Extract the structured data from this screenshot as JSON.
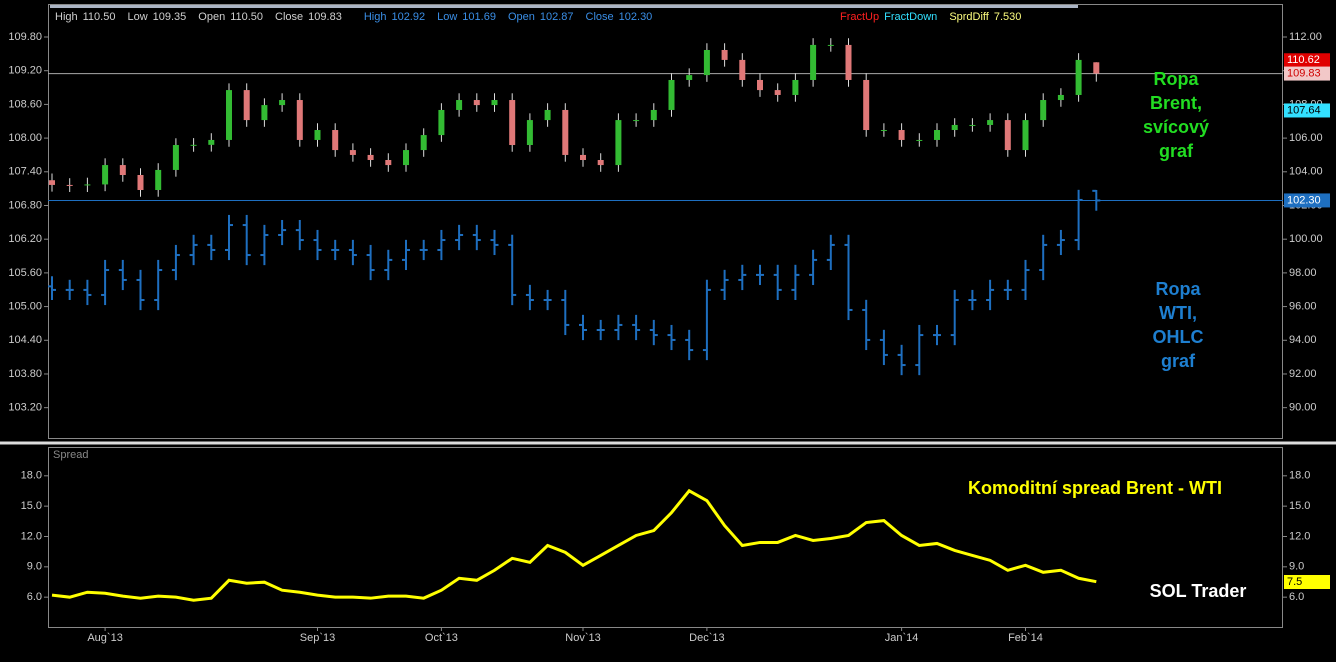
{
  "chart_data": [
    {
      "type": "candlestick",
      "info_bar": [
        {
          "text": "High",
          "color": "#cfcfcf"
        },
        {
          "text": "110.50",
          "color": "#cfcfcf"
        },
        {
          "text": "Low",
          "color": "#cfcfcf"
        },
        {
          "text": "109.35",
          "color": "#cfcfcf"
        },
        {
          "text": "Open",
          "color": "#cfcfcf"
        },
        {
          "text": "110.50",
          "color": "#cfcfcf"
        },
        {
          "text": "Close",
          "color": "#cfcfcf"
        },
        {
          "text": "109.83",
          "color": "#cfcfcf"
        },
        {
          "text": "High",
          "color": "#3a8ee6"
        },
        {
          "text": "102.92",
          "color": "#3a8ee6"
        },
        {
          "text": "Low",
          "color": "#3a8ee6"
        },
        {
          "text": "101.69",
          "color": "#3a8ee6"
        },
        {
          "text": "Open",
          "color": "#3a8ee6"
        },
        {
          "text": "102.87",
          "color": "#3a8ee6"
        },
        {
          "text": "Close",
          "color": "#3a8ee6"
        },
        {
          "text": "102.30",
          "color": "#3a8ee6"
        },
        {
          "text": "FractUp",
          "color": "#ff2020"
        },
        {
          "text": "FractDown",
          "color": "#33e0ff"
        },
        {
          "text": "SprdDiff",
          "color": "#ffff80"
        },
        {
          "text": "7.530",
          "color": "#ffff80"
        }
      ],
      "annotations": [
        {
          "lines": [
            "Ropa",
            "Brent,",
            "svícový",
            "graf"
          ],
          "color": "#22dd22"
        },
        {
          "lines": [
            "Ropa",
            "WTI,",
            "OHLC",
            "graf"
          ],
          "color": "#1e7fd0"
        }
      ],
      "ylim": [
        88.2,
        113.9
      ],
      "yticks": [
        {
          "value": 112,
          "label": "112.00"
        },
        {
          "value": 110,
          "label": "110.00"
        },
        {
          "value": 108,
          "label": "108.00"
        },
        {
          "value": 106,
          "label": "106.00"
        },
        {
          "value": 104,
          "label": "104.00"
        },
        {
          "value": 102,
          "label": "102.00"
        },
        {
          "value": 100,
          "label": "100.00"
        },
        {
          "value": 98,
          "label": "98.00"
        },
        {
          "value": 96,
          "label": "96.00"
        },
        {
          "value": 94,
          "label": "94.00"
        },
        {
          "value": 92,
          "label": "92.00"
        },
        {
          "value": 90,
          "label": "90.00"
        }
      ],
      "y2lim": [
        102.66,
        110.37
      ],
      "y2ticks": [
        {
          "value": 109.8,
          "label": "109.80"
        },
        {
          "value": 109.2,
          "label": "109.20"
        },
        {
          "value": 108.6,
          "label": "108.60"
        },
        {
          "value": 108,
          "label": "108.00"
        },
        {
          "value": 107.4,
          "label": "107.40"
        },
        {
          "value": 106.8,
          "label": "106.80"
        },
        {
          "value": 106.2,
          "label": "106.20"
        },
        {
          "value": 105.6,
          "label": "105.60"
        },
        {
          "value": 105,
          "label": "105.00"
        },
        {
          "value": 104.4,
          "label": "104.40"
        },
        {
          "value": 103.8,
          "label": "103.80"
        },
        {
          "value": 103.2,
          "label": "103.20"
        }
      ],
      "price_labels": [
        {
          "value": 110.62,
          "label": "110.62",
          "bg": "#e00000",
          "fg": "#ffffff"
        },
        {
          "value": 109.83,
          "label": "109.83",
          "bg": "#f2c8c8",
          "fg": "#d00000",
          "line": "#aaaaaa"
        },
        {
          "value": 107.64,
          "label": "107.64",
          "bg": "#33e0ff",
          "fg": "#000000"
        },
        {
          "value": 102.3,
          "label": "102.30",
          "bg": "#1e6fc0",
          "fg": "#ffffff",
          "line": "#1e6fc0"
        }
      ],
      "fractal_up_color": "#ff2020",
      "fractal_down_color": "#33e0ff",
      "series": [
        {
          "style": "candle",
          "up_color": "#33bb33",
          "down_color": "#e07878",
          "wick_color": "#dddddd",
          "fractals": true,
          "open": [
            103.5,
            103.22,
            103.2,
            103.25,
            104.4,
            103.81,
            102.92,
            104.11,
            105.59,
            105.6,
            105.89,
            108.85,
            107.07,
            107.96,
            108.26,
            105.89,
            106.48,
            105.29,
            105.0,
            104.7,
            104.4,
            105.29,
            106.18,
            107.67,
            108.26,
            107.96,
            108.26,
            105.59,
            107.07,
            107.67,
            105.0,
            104.7,
            104.4,
            107.07,
            107.07,
            107.67,
            109.45,
            109.74,
            111.23,
            110.64,
            109.45,
            108.85,
            108.56,
            109.45,
            111.53,
            111.53,
            109.45,
            106.48,
            106.48,
            105.89,
            105.89,
            106.48,
            106.78,
            106.78,
            107.07,
            105.29,
            107.07,
            108.26,
            108.56,
            110.5
          ],
          "high": [
            103.9,
            103.62,
            103.65,
            104.8,
            104.8,
            104.21,
            104.51,
            105.99,
            106.0,
            106.29,
            109.25,
            109.25,
            108.36,
            108.66,
            108.66,
            106.88,
            106.88,
            105.69,
            105.4,
            105.1,
            105.69,
            106.58,
            108.07,
            108.66,
            108.66,
            108.66,
            108.66,
            107.47,
            108.07,
            108.07,
            105.4,
            105.1,
            107.47,
            107.47,
            108.07,
            109.85,
            110.14,
            111.63,
            111.63,
            111.04,
            109.85,
            109.25,
            109.85,
            111.93,
            111.93,
            111.93,
            109.85,
            106.88,
            106.88,
            106.29,
            106.88,
            107.18,
            107.18,
            107.47,
            107.47,
            107.47,
            108.66,
            108.96,
            111.04,
            110.5
          ],
          "low": [
            102.82,
            102.8,
            102.8,
            102.85,
            103.41,
            102.52,
            102.52,
            103.71,
            105.19,
            105.2,
            105.49,
            106.67,
            106.67,
            107.56,
            105.49,
            105.49,
            104.89,
            104.6,
            104.3,
            104.0,
            104.0,
            104.89,
            105.78,
            107.27,
            107.56,
            107.56,
            105.19,
            105.19,
            106.67,
            104.6,
            104.3,
            104.0,
            104.0,
            106.67,
            106.67,
            107.27,
            109.05,
            109.34,
            110.24,
            109.05,
            108.45,
            108.16,
            108.16,
            109.05,
            111.13,
            109.05,
            106.08,
            106.08,
            105.49,
            105.49,
            105.49,
            106.08,
            106.38,
            106.38,
            104.89,
            104.89,
            106.67,
            107.86,
            108.16,
            109.35
          ],
          "close": [
            103.22,
            103.2,
            103.25,
            104.4,
            103.81,
            102.92,
            104.11,
            105.59,
            105.6,
            105.89,
            108.85,
            107.07,
            107.96,
            108.26,
            105.89,
            106.48,
            105.29,
            105.0,
            104.7,
            104.4,
            105.29,
            106.18,
            107.67,
            108.26,
            107.96,
            108.26,
            105.59,
            107.07,
            107.67,
            105.0,
            104.7,
            104.4,
            107.07,
            107.07,
            107.67,
            109.45,
            109.74,
            111.23,
            110.64,
            109.45,
            108.85,
            108.56,
            109.45,
            111.53,
            111.53,
            109.45,
            106.48,
            106.48,
            105.89,
            105.89,
            106.48,
            106.78,
            106.78,
            107.07,
            105.29,
            107.07,
            108.26,
            108.56,
            110.64,
            109.83
          ]
        },
        {
          "style": "ohlc",
          "color": "#1e6fc0",
          "open": [
            97.2,
            96.99,
            96.99,
            96.69,
            98.17,
            97.58,
            96.39,
            98.17,
            99.06,
            99.66,
            99.36,
            100.84,
            99.06,
            100.25,
            100.54,
            99.95,
            99.36,
            99.36,
            99.06,
            98.17,
            98.77,
            99.36,
            99.36,
            99.95,
            100.25,
            99.95,
            99.66,
            96.69,
            96.39,
            96.39,
            94.91,
            94.61,
            94.61,
            94.91,
            94.61,
            94.31,
            94.02,
            93.42,
            96.99,
            97.58,
            97.88,
            97.88,
            96.99,
            97.88,
            98.77,
            99.66,
            95.8,
            94.02,
            93.13,
            92.53,
            94.31,
            94.31,
            96.39,
            96.39,
            96.99,
            96.99,
            98.17,
            99.66,
            99.95,
            102.87
          ],
          "high": [
            97.8,
            97.59,
            97.59,
            98.77,
            98.77,
            98.18,
            98.77,
            99.66,
            100.26,
            100.26,
            101.44,
            101.44,
            100.85,
            101.14,
            101.14,
            100.55,
            99.96,
            99.96,
            99.66,
            99.37,
            99.96,
            99.96,
            100.55,
            100.85,
            100.85,
            100.55,
            100.26,
            97.29,
            96.99,
            96.99,
            95.51,
            95.21,
            95.51,
            95.51,
            95.21,
            94.91,
            94.62,
            97.59,
            98.18,
            98.48,
            98.48,
            98.48,
            98.48,
            99.37,
            100.26,
            100.26,
            96.4,
            94.62,
            93.73,
            94.91,
            94.91,
            96.99,
            96.99,
            97.59,
            97.59,
            98.77,
            100.26,
            100.55,
            102.93,
            102.92
          ],
          "low": [
            96.39,
            96.39,
            96.09,
            96.09,
            96.98,
            95.79,
            95.79,
            97.57,
            98.46,
            98.76,
            98.76,
            98.46,
            98.46,
            99.65,
            99.35,
            98.76,
            98.76,
            98.46,
            97.57,
            97.57,
            98.17,
            98.76,
            98.76,
            99.35,
            99.35,
            99.06,
            96.09,
            95.79,
            95.79,
            94.31,
            94.01,
            94.01,
            94.01,
            94.01,
            93.71,
            93.42,
            92.82,
            92.82,
            96.39,
            96.98,
            97.28,
            96.39,
            96.39,
            97.28,
            98.17,
            95.2,
            93.42,
            92.53,
            91.93,
            91.93,
            93.71,
            93.71,
            95.79,
            95.79,
            96.39,
            96.39,
            97.57,
            99.06,
            99.35,
            101.69
          ],
          "close": [
            96.99,
            96.99,
            96.69,
            98.17,
            97.58,
            96.39,
            98.17,
            99.06,
            99.66,
            99.36,
            100.84,
            99.06,
            100.25,
            100.54,
            99.95,
            99.36,
            99.36,
            99.06,
            98.17,
            98.77,
            99.36,
            99.36,
            99.95,
            100.25,
            99.95,
            99.66,
            96.69,
            96.39,
            96.39,
            94.91,
            94.61,
            94.61,
            94.91,
            94.61,
            94.31,
            94.02,
            93.42,
            96.99,
            97.58,
            97.88,
            97.88,
            96.99,
            97.88,
            98.77,
            99.66,
            95.8,
            94.02,
            93.13,
            92.53,
            94.31,
            94.31,
            96.39,
            96.39,
            96.99,
            96.99,
            98.17,
            99.66,
            99.95,
            102.33,
            102.3
          ]
        }
      ]
    },
    {
      "type": "line",
      "title": "Spread",
      "annotations": [
        {
          "lines": [
            "Komoditní spread Brent - WTI"
          ],
          "color": "#ffff00"
        },
        {
          "lines": [
            "SOL Trader"
          ],
          "color": "#ffffff"
        }
      ],
      "categories": [
        null,
        null,
        null,
        "Aug`13",
        null,
        null,
        null,
        null,
        null,
        null,
        null,
        null,
        null,
        null,
        null,
        "Sep`13",
        null,
        null,
        null,
        null,
        null,
        null,
        "Oct`13",
        null,
        null,
        null,
        null,
        null,
        null,
        null,
        "Nov`13",
        null,
        null,
        null,
        null,
        null,
        null,
        "Dec`13",
        null,
        null,
        null,
        null,
        null,
        null,
        null,
        null,
        null,
        null,
        "Jan`14",
        null,
        null,
        null,
        null,
        null,
        null,
        "Feb`14",
        null,
        null,
        null,
        null
      ],
      "color": "#ffff00",
      "values": [
        6.2,
        6.0,
        6.49,
        6.39,
        6.1,
        5.9,
        6.1,
        6.0,
        5.7,
        5.9,
        7.67,
        7.38,
        7.48,
        6.69,
        6.49,
        6.2,
        6.0,
        6.0,
        5.9,
        6.1,
        6.1,
        5.9,
        6.69,
        7.87,
        7.67,
        8.66,
        9.84,
        9.44,
        11.11,
        10.43,
        9.15,
        10.13,
        11.11,
        12.1,
        12.59,
        14.36,
        16.52,
        15.54,
        13.08,
        11.11,
        11.41,
        11.41,
        12.1,
        11.61,
        11.8,
        12.1,
        13.38,
        13.57,
        12.1,
        11.11,
        11.31,
        10.62,
        10.13,
        9.64,
        8.66,
        9.15,
        8.46,
        8.66,
        7.87,
        7.53
      ],
      "ylim": [
        3.05,
        20.75
      ],
      "yticks": [
        {
          "value": 18,
          "label": "18.0"
        },
        {
          "value": 15,
          "label": "15.0"
        },
        {
          "value": 12,
          "label": "12.0"
        },
        {
          "value": 9,
          "label": "9.0"
        },
        {
          "value": 6,
          "label": "6.0"
        }
      ],
      "price_labels": [
        {
          "value": 7.5,
          "label": "7.5",
          "bg": "#ffff00",
          "fg": "#000000"
        }
      ]
    }
  ]
}
